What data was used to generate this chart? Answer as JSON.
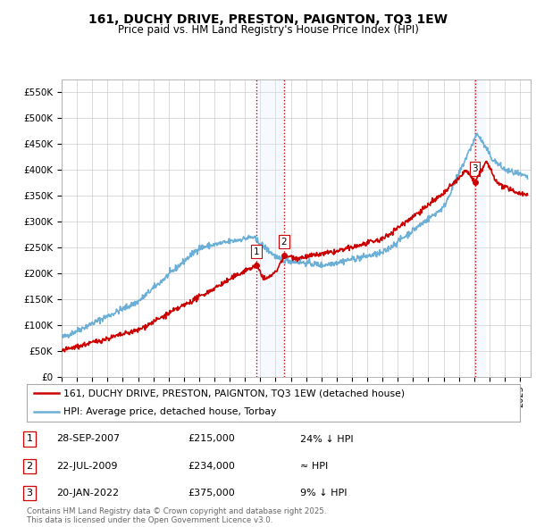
{
  "title": "161, DUCHY DRIVE, PRESTON, PAIGNTON, TQ3 1EW",
  "subtitle": "Price paid vs. HM Land Registry's House Price Index (HPI)",
  "ylim": [
    0,
    575000
  ],
  "yticks": [
    0,
    50000,
    100000,
    150000,
    200000,
    250000,
    300000,
    350000,
    400000,
    450000,
    500000,
    550000
  ],
  "ytick_labels": [
    "£0",
    "£50K",
    "£100K",
    "£150K",
    "£200K",
    "£250K",
    "£300K",
    "£350K",
    "£400K",
    "£450K",
    "£500K",
    "£550K"
  ],
  "hpi_color": "#6baed6",
  "price_color": "#cc0000",
  "transaction_dates": [
    2007.75,
    2009.56,
    2022.05
  ],
  "transaction_prices": [
    215000,
    234000,
    375000
  ],
  "transaction_labels": [
    "1",
    "2",
    "3"
  ],
  "vline_color": "#cc0000",
  "shade_color": "#ddeeff",
  "legend_entries": [
    "161, DUCHY DRIVE, PRESTON, PAIGNTON, TQ3 1EW (detached house)",
    "HPI: Average price, detached house, Torbay"
  ],
  "table_entries": [
    {
      "num": "1",
      "date": "28-SEP-2007",
      "price": "£215,000",
      "change": "24% ↓ HPI"
    },
    {
      "num": "2",
      "date": "22-JUL-2009",
      "price": "£234,000",
      "change": "≈ HPI"
    },
    {
      "num": "3",
      "date": "20-JAN-2022",
      "price": "£375,000",
      "change": "9% ↓ HPI"
    }
  ],
  "footnote": "Contains HM Land Registry data © Crown copyright and database right 2025.\nThis data is licensed under the Open Government Licence v3.0.",
  "background_color": "#ffffff",
  "grid_color": "#cccccc"
}
